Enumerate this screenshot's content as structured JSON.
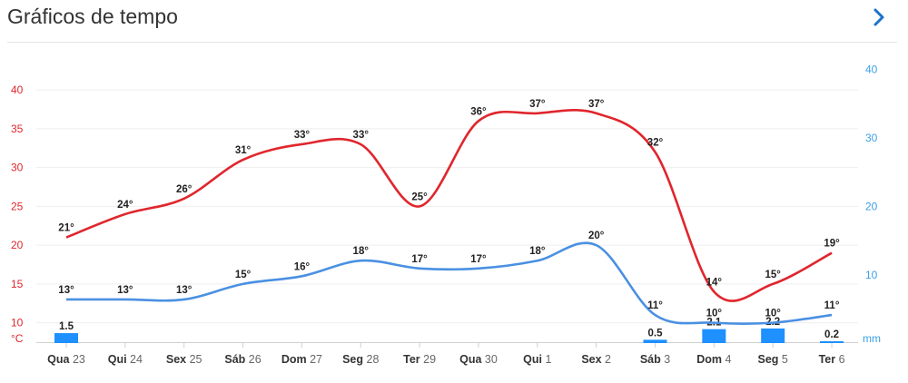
{
  "header": {
    "title": "Gráficos de tempo",
    "next_icon": "chevron-right-icon"
  },
  "colors": {
    "max": "#e0262d",
    "min": "#4a90e2",
    "precip": "#1e90ff",
    "axis_left": "#e0262d",
    "axis_right": "#3aa0e6",
    "grid": "#eeeeee"
  },
  "chart_data": {
    "type": "line",
    "categories": [
      "Qua 23",
      "Qui 24",
      "Sex 25",
      "Sáb 26",
      "Dom 27",
      "Seg 28",
      "Ter 29",
      "Qua 30",
      "Qui 1",
      "Sex 2",
      "Sáb 3",
      "Dom 4",
      "Seg 5",
      "Ter 6"
    ],
    "series": [
      {
        "values": [
          21,
          24,
          26,
          31,
          33,
          33,
          25,
          36,
          37,
          37,
          32,
          14,
          15,
          19
        ],
        "labels": [
          "21°",
          "24°",
          "26°",
          "31°",
          "33°",
          "33°",
          "25°",
          "36°",
          "37°",
          "37°",
          "32°",
          "14°",
          "15°",
          "19°"
        ]
      },
      {
        "values": [
          13,
          13,
          13,
          15,
          16,
          18,
          17,
          17,
          18,
          20,
          11,
          10,
          10,
          11
        ],
        "labels": [
          "13°",
          "13°",
          "13°",
          "15°",
          "16°",
          "18°",
          "17°",
          "17°",
          "18°",
          "20°",
          "11°",
          "10°",
          "10°",
          "11°"
        ]
      }
    ],
    "precipitation": {
      "values": [
        1.5,
        null,
        null,
        null,
        null,
        null,
        null,
        null,
        null,
        null,
        0.5,
        2.1,
        2.2,
        0.2
      ],
      "labels": [
        "1.5",
        "",
        "",
        "",
        "",
        "",
        "",
        "",
        "",
        "",
        "0.5",
        "2.1",
        "2.2",
        "0.2"
      ]
    },
    "y_left": {
      "ticks": [
        "40",
        "35",
        "30",
        "25",
        "20",
        "15",
        "10"
      ],
      "unit": "°C",
      "range": [
        7.5,
        40
      ]
    },
    "y_right": {
      "ticks": [
        "40",
        "30",
        "20",
        "10"
      ],
      "unit": "mm"
    },
    "grid": true
  }
}
